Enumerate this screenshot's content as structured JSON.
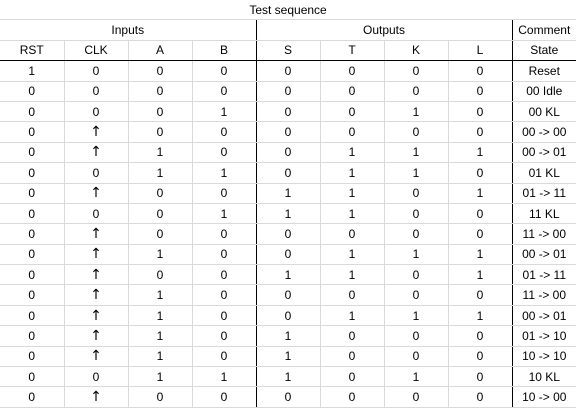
{
  "title": "Test sequence",
  "groups": {
    "inputs": "Inputs",
    "outputs": "Outputs",
    "comment": "Comment"
  },
  "columns": [
    "RST",
    "CLK",
    "A",
    "B",
    "S",
    "T",
    "K",
    "L",
    "State"
  ],
  "clk_rising_symbol": "↑",
  "rows": [
    [
      "1",
      "0",
      "0",
      "0",
      "0",
      "0",
      "0",
      "0",
      "Reset"
    ],
    [
      "0",
      "0",
      "0",
      "0",
      "0",
      "0",
      "0",
      "0",
      "00 Idle"
    ],
    [
      "0",
      "0",
      "0",
      "1",
      "0",
      "0",
      "1",
      "0",
      "00 KL"
    ],
    [
      "0",
      "↑",
      "0",
      "0",
      "0",
      "0",
      "0",
      "0",
      "00 -> 00"
    ],
    [
      "0",
      "↑",
      "1",
      "0",
      "0",
      "1",
      "1",
      "1",
      "00 -> 01"
    ],
    [
      "0",
      "0",
      "1",
      "1",
      "0",
      "1",
      "1",
      "0",
      "01 KL"
    ],
    [
      "0",
      "↑",
      "0",
      "0",
      "1",
      "1",
      "0",
      "1",
      "01 -> 11"
    ],
    [
      "0",
      "0",
      "0",
      "1",
      "1",
      "1",
      "0",
      "0",
      "11 KL"
    ],
    [
      "0",
      "↑",
      "0",
      "0",
      "0",
      "0",
      "0",
      "0",
      "11 -> 00"
    ],
    [
      "0",
      "↑",
      "1",
      "0",
      "0",
      "1",
      "1",
      "1",
      "00 -> 01"
    ],
    [
      "0",
      "↑",
      "0",
      "0",
      "1",
      "1",
      "0",
      "1",
      "01 -> 11"
    ],
    [
      "0",
      "↑",
      "1",
      "0",
      "0",
      "0",
      "0",
      "0",
      "11 -> 00"
    ],
    [
      "0",
      "↑",
      "1",
      "0",
      "0",
      "1",
      "1",
      "1",
      "00 -> 01"
    ],
    [
      "0",
      "↑",
      "1",
      "0",
      "1",
      "0",
      "0",
      "0",
      "01 -> 10"
    ],
    [
      "0",
      "↑",
      "1",
      "0",
      "1",
      "0",
      "0",
      "0",
      "10 -> 10"
    ],
    [
      "0",
      "0",
      "1",
      "1",
      "1",
      "0",
      "1",
      "0",
      "10 KL"
    ],
    [
      "0",
      "↑",
      "0",
      "0",
      "0",
      "0",
      "0",
      "0",
      "10 -> 00"
    ]
  ]
}
